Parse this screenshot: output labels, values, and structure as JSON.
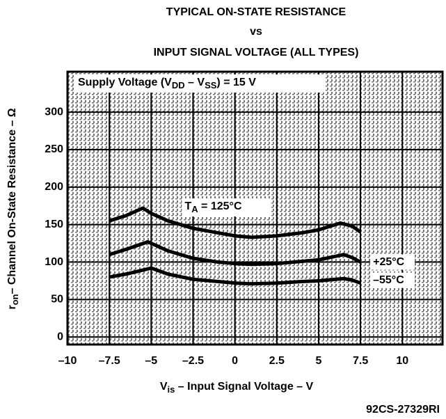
{
  "chart_data": {
    "type": "line",
    "title_lines": [
      "TYPICAL ON-STATE RESISTANCE",
      "vs",
      "INPUT SIGNAL VOLTAGE (ALL TYPES)"
    ],
    "supply_label_parts": [
      "Supply Voltage (V",
      "DD",
      " – V",
      "SS",
      ") = 15 V"
    ],
    "x_label_parts": [
      "V",
      "is",
      " – Input Signal Voltage – V"
    ],
    "y_label_parts": [
      "r",
      "on",
      "– Channel On-State Resistance – Ω"
    ],
    "code": "92CS-27329RI",
    "xlim": [
      -10,
      12.4
    ],
    "ylim": [
      -10,
      354
    ],
    "xticks": [
      {
        "value": -10,
        "label": "–10"
      },
      {
        "value": -7.5,
        "label": "–7.5"
      },
      {
        "value": -5,
        "label": "–5"
      },
      {
        "value": -2.5,
        "label": "–2.5"
      },
      0,
      2.5,
      5,
      7.5,
      10
    ],
    "yticks": [
      0,
      50,
      100,
      150,
      200,
      250,
      300
    ],
    "grid": true,
    "series": [
      {
        "name_parts": [
          "T",
          "A",
          " = 125°C"
        ],
        "color": "#000000",
        "x": [
          -7.5,
          -6.5,
          -5.5,
          -5,
          -4,
          -2.5,
          -1,
          0,
          1,
          2.5,
          4,
          5,
          6.3,
          7,
          7.5
        ],
        "values": [
          155,
          162,
          172,
          165,
          155,
          145,
          139,
          135,
          133,
          135,
          139,
          143,
          152,
          148,
          140
        ]
      },
      {
        "name": "+25°C",
        "color": "#000000",
        "x": [
          -7.5,
          -6.5,
          -5.2,
          -4,
          -2.5,
          -1,
          0,
          1,
          2.5,
          4,
          5,
          6.5,
          7,
          7.5
        ],
        "values": [
          110,
          117,
          127,
          115,
          105,
          100,
          98,
          97,
          98,
          101,
          103,
          110,
          106,
          100
        ]
      },
      {
        "name": "–55°C",
        "color": "#000000",
        "x": [
          -7.5,
          -6.5,
          -5,
          -4,
          -2.5,
          -1,
          0,
          1,
          2.5,
          4,
          5,
          6.5,
          7,
          7.5
        ],
        "values": [
          80,
          84,
          92,
          84,
          77,
          74,
          72,
          71,
          72,
          74,
          75,
          78,
          76,
          72
        ]
      }
    ]
  }
}
